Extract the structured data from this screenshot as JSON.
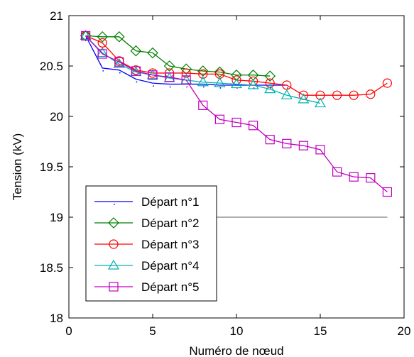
{
  "chart_data": {
    "type": "line",
    "xlabel": "Numéro de nœud",
    "ylabel": "Tension (kV)",
    "xlim": [
      0,
      20
    ],
    "ylim": [
      18,
      21
    ],
    "xticks": [
      "0",
      "5",
      "10",
      "15",
      "20"
    ],
    "yticks": [
      "18",
      "18.5",
      "19",
      "19.5",
      "20",
      "20.5",
      "21"
    ],
    "grid": false,
    "legend_position": "lower-left",
    "reference_line": {
      "y": 19,
      "x": [
        8,
        19
      ],
      "color": "#7f7f7f"
    },
    "series": [
      {
        "name": "Départ n°1",
        "color": "#0000ff",
        "marker": "point",
        "x": [
          1,
          2,
          3,
          4,
          5,
          6,
          7,
          8,
          9,
          10,
          11,
          12,
          13
        ],
        "y": [
          20.8,
          20.48,
          20.46,
          20.37,
          20.33,
          20.32,
          20.32,
          20.32,
          20.31,
          20.31,
          20.31,
          20.31,
          20.31
        ]
      },
      {
        "name": "Départ n°2",
        "color": "#008000",
        "marker": "diamond",
        "x": [
          1,
          2,
          3,
          4,
          5,
          6,
          7,
          8,
          9,
          10,
          11,
          12
        ],
        "y": [
          20.8,
          20.79,
          20.79,
          20.65,
          20.63,
          20.5,
          20.47,
          20.45,
          20.44,
          20.41,
          20.41,
          20.4
        ]
      },
      {
        "name": "Départ n°3",
        "color": "#ff0000",
        "marker": "circle",
        "x": [
          1,
          2,
          3,
          4,
          5,
          6,
          7,
          8,
          9,
          10,
          11,
          12,
          13,
          14,
          15,
          16,
          17,
          18,
          19
        ],
        "y": [
          20.8,
          20.73,
          20.55,
          20.46,
          20.43,
          20.43,
          20.43,
          20.42,
          20.42,
          20.36,
          20.35,
          20.33,
          20.31,
          20.21,
          20.21,
          20.21,
          20.21,
          20.22,
          20.33
        ]
      },
      {
        "name": "Départ n°4",
        "color": "#00b0b0",
        "marker": "triangle",
        "x": [
          1,
          2,
          3,
          4,
          5,
          6,
          7,
          8,
          9,
          10,
          11,
          12,
          13,
          14,
          15
        ],
        "y": [
          20.8,
          20.63,
          20.52,
          20.44,
          20.41,
          20.38,
          20.36,
          20.34,
          20.33,
          20.32,
          20.31,
          20.27,
          20.21,
          20.17,
          20.13
        ]
      },
      {
        "name": "Départ n°5",
        "color": "#c000c0",
        "marker": "square",
        "x": [
          1,
          2,
          3,
          4,
          5,
          6,
          7,
          8,
          9,
          10,
          11,
          12,
          13,
          14,
          15,
          16,
          17,
          18,
          19
        ],
        "y": [
          20.8,
          20.62,
          20.54,
          20.45,
          20.41,
          20.39,
          20.36,
          20.11,
          19.97,
          19.94,
          19.91,
          19.77,
          19.73,
          19.71,
          19.67,
          19.45,
          19.4,
          19.39,
          19.25
        ]
      }
    ]
  }
}
